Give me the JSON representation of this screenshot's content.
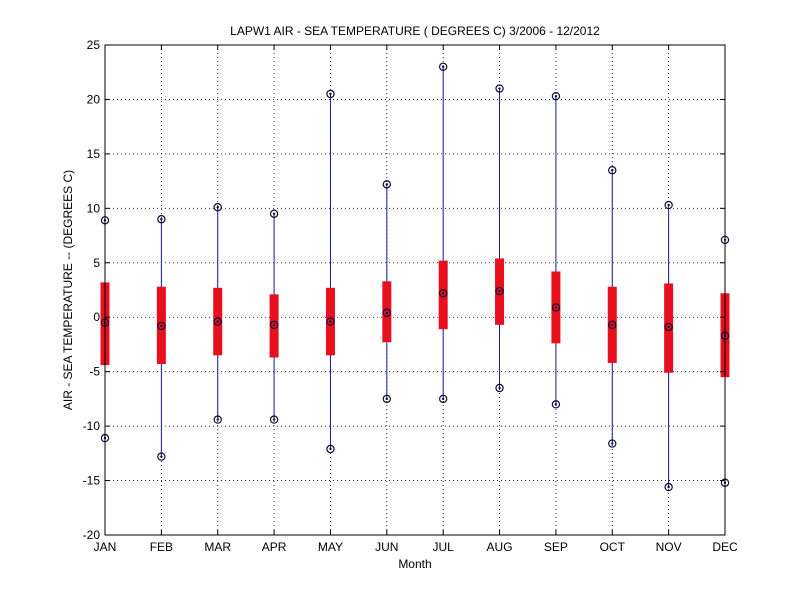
{
  "chart_data": {
    "type": "box",
    "title": "LAPW1  AIR - SEA TEMPERATURE ( DEGREES C) 3/2006 - 12/2012",
    "xlabel": "Month",
    "ylabel": "AIR - SEA TEMPERATURE -- (DEGREES C)",
    "categories": [
      "JAN",
      "FEB",
      "MAR",
      "APR",
      "MAY",
      "JUN",
      "JUL",
      "AUG",
      "SEP",
      "OCT",
      "NOV",
      "DEC"
    ],
    "ylim": [
      -20,
      25
    ],
    "yticks": [
      -20,
      -15,
      -10,
      -5,
      0,
      5,
      10,
      15,
      20,
      25
    ],
    "ytick_labels": [
      "-20",
      "-15",
      "-10",
      "-5",
      "0",
      "5",
      "10",
      "15",
      "20",
      "25"
    ],
    "grid": true,
    "box_color": "#e8101e",
    "whisker_color": "#1a1aa0",
    "marker_color": "#0a0a3a",
    "series": [
      {
        "category": "JAN",
        "min": -11.1,
        "q1": -4.4,
        "median": -0.5,
        "q3": 3.2,
        "max": 8.9
      },
      {
        "category": "FEB",
        "min": -12.8,
        "q1": -4.3,
        "median": -0.8,
        "q3": 2.8,
        "max": 9.0
      },
      {
        "category": "MAR",
        "min": -9.4,
        "q1": -3.5,
        "median": -0.4,
        "q3": 2.7,
        "max": 10.1
      },
      {
        "category": "APR",
        "min": -9.4,
        "q1": -3.7,
        "median": -0.7,
        "q3": 2.1,
        "max": 9.5
      },
      {
        "category": "MAY",
        "min": -12.1,
        "q1": -3.5,
        "median": -0.4,
        "q3": 2.7,
        "max": 20.5
      },
      {
        "category": "JUN",
        "min": -7.5,
        "q1": -2.3,
        "median": 0.4,
        "q3": 3.3,
        "max": 12.2
      },
      {
        "category": "JUL",
        "min": -7.5,
        "q1": -1.1,
        "median": 2.2,
        "q3": 5.2,
        "max": 23.0
      },
      {
        "category": "AUG",
        "min": -6.5,
        "q1": -0.7,
        "median": 2.4,
        "q3": 5.4,
        "max": 21.0
      },
      {
        "category": "SEP",
        "min": -8.0,
        "q1": -2.4,
        "median": 0.9,
        "q3": 4.2,
        "max": 20.3
      },
      {
        "category": "OCT",
        "min": -11.6,
        "q1": -4.2,
        "median": -0.7,
        "q3": 2.8,
        "max": 13.5
      },
      {
        "category": "NOV",
        "min": -15.6,
        "q1": -5.1,
        "median": -0.9,
        "q3": 3.1,
        "max": 10.3
      },
      {
        "category": "DEC",
        "min": -15.2,
        "q1": -5.5,
        "median": -1.7,
        "q3": 2.2,
        "max": 7.1
      }
    ]
  }
}
